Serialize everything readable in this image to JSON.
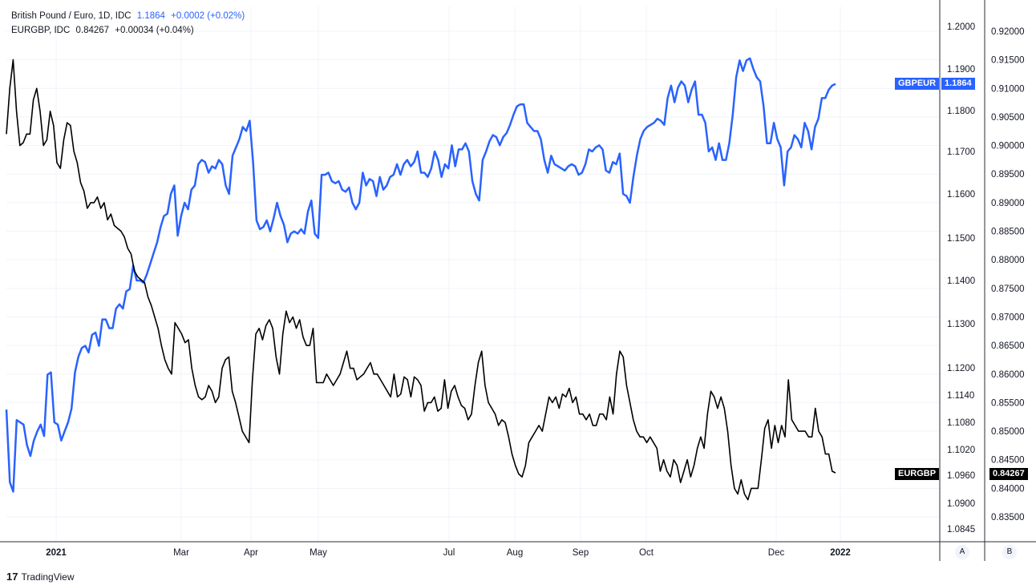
{
  "legend": {
    "series1": {
      "name": "British Pound / Euro, 1D, IDC",
      "value": "1.1864",
      "change": "+0.0002 (+0.02%)"
    },
    "series2": {
      "name": "EURGBP, IDC",
      "value": "0.84267",
      "change": "+0.00034 (+0.04%)"
    }
  },
  "tags": {
    "gbpeur_name": "GBPEUR",
    "gbpeur_value": "1.1864",
    "eurgbp_name": "EURGBP",
    "eurgbp_value": "0.84267"
  },
  "scale_buttons": {
    "a": "A",
    "b": "B"
  },
  "footer": {
    "brand": "TradingView",
    "logo": "17"
  },
  "colors": {
    "gbpeur": "#2962ff",
    "eurgbp": "#000000",
    "grid": "#f0f3fa",
    "axis": "#131722"
  },
  "chart_data": {
    "type": "line",
    "x_ticks": [
      "2021",
      "Mar",
      "Apr",
      "May",
      "Jul",
      "Aug",
      "Sep",
      "Oct",
      "Dec",
      "2022"
    ],
    "axis_a_ticks": [
      "1.2000",
      "1.1900",
      "1.1800",
      "1.1700",
      "1.1600",
      "1.1500",
      "1.1400",
      "1.1300",
      "1.1200",
      "1.1140",
      "1.1080",
      "1.1020",
      "1.0960",
      "1.0900",
      "1.0845"
    ],
    "axis_b_ticks": [
      "0.92000",
      "0.91500",
      "0.91000",
      "0.90500",
      "0.90000",
      "0.89500",
      "0.89000",
      "0.88500",
      "0.88000",
      "0.87500",
      "0.87000",
      "0.86500",
      "0.86000",
      "0.85500",
      "0.85000",
      "0.84500",
      "0.84000",
      "0.83500"
    ],
    "series": [
      {
        "name": "GBPEUR",
        "axis": "A",
        "values": [
          1.1108,
          1.0945,
          1.0925,
          1.1085,
          1.108,
          1.1075,
          1.103,
          1.1005,
          1.104,
          1.106,
          1.1075,
          1.105,
          1.1185,
          1.119,
          1.108,
          1.1075,
          1.104,
          1.106,
          1.108,
          1.111,
          1.119,
          1.1225,
          1.1245,
          1.125,
          1.1235,
          1.1275,
          1.128,
          1.125,
          1.131,
          1.131,
          1.129,
          1.129,
          1.1335,
          1.1345,
          1.1335,
          1.1375,
          1.138,
          1.1435,
          1.14,
          1.14,
          1.1395,
          1.1415,
          1.144,
          1.1465,
          1.149,
          1.1525,
          1.155,
          1.1555,
          1.16,
          1.162,
          1.1505,
          1.155,
          1.158,
          1.1565,
          1.161,
          1.162,
          1.167,
          1.168,
          1.1675,
          1.165,
          1.1665,
          1.166,
          1.168,
          1.167,
          1.162,
          1.16,
          1.169,
          1.171,
          1.173,
          1.176,
          1.175,
          1.1775,
          1.1675,
          1.154,
          1.152,
          1.1525,
          1.154,
          1.1515,
          1.1545,
          1.158,
          1.155,
          1.153,
          1.149,
          1.151,
          1.1515,
          1.151,
          1.152,
          1.151,
          1.156,
          1.1585,
          1.151,
          1.15,
          1.1645,
          1.1645,
          1.165,
          1.163,
          1.1625,
          1.163,
          1.161,
          1.1605,
          1.1615,
          1.158,
          1.1565,
          1.158,
          1.165,
          1.162,
          1.1635,
          1.163,
          1.1595,
          1.164,
          1.161,
          1.162,
          1.164,
          1.1645,
          1.167,
          1.1645,
          1.167,
          1.168,
          1.1665,
          1.1675,
          1.17,
          1.165,
          1.165,
          1.164,
          1.166,
          1.17,
          1.168,
          1.164,
          1.167,
          1.166,
          1.1715,
          1.1665,
          1.1705,
          1.1705,
          1.172,
          1.17,
          1.163,
          1.16,
          1.1585,
          1.168,
          1.17,
          1.1725,
          1.174,
          1.1735,
          1.1715,
          1.1735,
          1.1745,
          1.1765,
          1.179,
          1.181,
          1.1815,
          1.1815,
          1.177,
          1.176,
          1.175,
          1.175,
          1.173,
          1.168,
          1.165,
          1.169,
          1.167,
          1.1665,
          1.166,
          1.1655,
          1.1665,
          1.167,
          1.1665,
          1.1645,
          1.165,
          1.167,
          1.1705,
          1.17,
          1.171,
          1.1715,
          1.1705,
          1.1655,
          1.165,
          1.1675,
          1.167,
          1.1695,
          1.16,
          1.1595,
          1.158,
          1.164,
          1.169,
          1.173,
          1.175,
          1.176,
          1.1765,
          1.177,
          1.178,
          1.1775,
          1.1765,
          1.183,
          1.186,
          1.182,
          1.1855,
          1.187,
          1.186,
          1.182,
          1.185,
          1.187,
          1.179,
          1.179,
          1.177,
          1.17,
          1.171,
          1.168,
          1.172,
          1.168,
          1.168,
          1.172,
          1.179,
          1.188,
          1.192,
          1.1895,
          1.192,
          1.1925,
          1.19,
          1.188,
          1.187,
          1.181,
          1.172,
          1.172,
          1.177,
          1.173,
          1.171,
          1.162,
          1.17,
          1.171,
          1.174,
          1.173,
          1.171,
          1.177,
          1.175,
          1.1705,
          1.176,
          1.178,
          1.183,
          1.183,
          1.185,
          1.186,
          1.1864
        ]
      },
      {
        "name": "EURGBP",
        "axis": "B",
        "values": [
          0.902,
          0.91,
          0.915,
          0.906,
          0.9,
          0.9005,
          0.902,
          0.902,
          0.908,
          0.91,
          0.906,
          0.9,
          0.901,
          0.906,
          0.9035,
          0.897,
          0.896,
          0.901,
          0.904,
          0.9035,
          0.899,
          0.897,
          0.8935,
          0.892,
          0.889,
          0.89,
          0.89,
          0.891,
          0.889,
          0.89,
          0.887,
          0.888,
          0.886,
          0.8855,
          0.885,
          0.884,
          0.882,
          0.881,
          0.878,
          0.877,
          0.8765,
          0.876,
          0.8735,
          0.872,
          0.87,
          0.868,
          0.865,
          0.8625,
          0.861,
          0.86,
          0.869,
          0.868,
          0.867,
          0.8655,
          0.866,
          0.861,
          0.858,
          0.856,
          0.8555,
          0.856,
          0.858,
          0.857,
          0.855,
          0.856,
          0.861,
          0.8625,
          0.863,
          0.857,
          0.855,
          0.8525,
          0.85,
          0.849,
          0.848,
          0.859,
          0.867,
          0.868,
          0.866,
          0.8685,
          0.8695,
          0.868,
          0.863,
          0.86,
          0.867,
          0.871,
          0.869,
          0.87,
          0.868,
          0.8695,
          0.8665,
          0.865,
          0.865,
          0.868,
          0.8585,
          0.8585,
          0.8585,
          0.86,
          0.859,
          0.858,
          0.859,
          0.86,
          0.862,
          0.864,
          0.861,
          0.861,
          0.859,
          0.8595,
          0.86,
          0.861,
          0.862,
          0.86,
          0.86,
          0.859,
          0.858,
          0.857,
          0.856,
          0.86,
          0.856,
          0.8565,
          0.8595,
          0.859,
          0.856,
          0.8595,
          0.859,
          0.858,
          0.8535,
          0.855,
          0.855,
          0.856,
          0.8535,
          0.854,
          0.859,
          0.854,
          0.857,
          0.858,
          0.856,
          0.8545,
          0.854,
          0.852,
          0.853,
          0.858,
          0.862,
          0.864,
          0.858,
          0.855,
          0.854,
          0.853,
          0.851,
          0.852,
          0.8515,
          0.849,
          0.846,
          0.844,
          0.8425,
          0.842,
          0.844,
          0.848,
          0.849,
          0.85,
          0.851,
          0.85,
          0.853,
          0.856,
          0.855,
          0.856,
          0.854,
          0.8565,
          0.856,
          0.8575,
          0.855,
          0.856,
          0.853,
          0.853,
          0.852,
          0.853,
          0.851,
          0.851,
          0.853,
          0.853,
          0.852,
          0.856,
          0.853,
          0.86,
          0.864,
          0.863,
          0.858,
          0.855,
          0.852,
          0.85,
          0.849,
          0.849,
          0.848,
          0.849,
          0.848,
          0.847,
          0.843,
          0.845,
          0.843,
          0.842,
          0.845,
          0.844,
          0.841,
          0.843,
          0.845,
          0.842,
          0.844,
          0.847,
          0.849,
          0.847,
          0.853,
          0.857,
          0.856,
          0.854,
          0.856,
          0.854,
          0.85,
          0.844,
          0.84,
          0.839,
          0.8415,
          0.839,
          0.838,
          0.84,
          0.84,
          0.84,
          0.845,
          0.8505,
          0.852,
          0.847,
          0.851,
          0.848,
          0.851,
          0.849,
          0.859,
          0.852,
          0.851,
          0.85,
          0.85,
          0.85,
          0.849,
          0.849,
          0.854,
          0.85,
          0.849,
          0.846,
          0.846,
          0.843,
          0.8427
        ]
      }
    ]
  }
}
